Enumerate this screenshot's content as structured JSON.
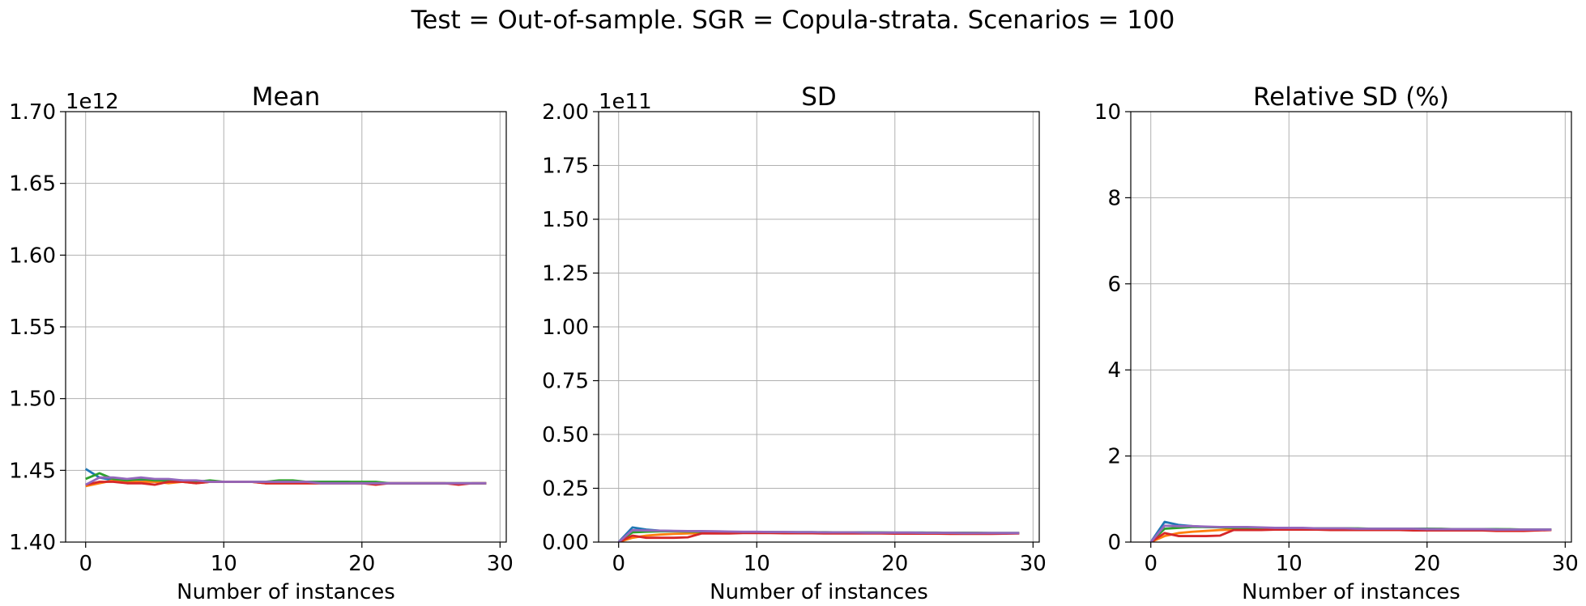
{
  "suptitle": "Test = Out-of-sample. SGR = Copula-strata. Scenarios = 100",
  "colors": [
    "#1f77b4",
    "#ff7f0e",
    "#2ca02c",
    "#d62728",
    "#9467bd"
  ],
  "chart_data": [
    {
      "type": "line",
      "title": "Mean",
      "xlabel": "Number of instances",
      "ylabel": "",
      "offset_text": "1e12",
      "xlim": [
        -1.45,
        30.45
      ],
      "ylim": [
        1.4,
        1.7
      ],
      "xticks": [
        0,
        10,
        20,
        30
      ],
      "xtick_labels": [
        "0",
        "10",
        "20",
        "30"
      ],
      "yticks": [
        1.4,
        1.45,
        1.5,
        1.55,
        1.6,
        1.65,
        1.7
      ],
      "ytick_labels": [
        "1.40",
        "1.45",
        "1.50",
        "1.55",
        "1.60",
        "1.65",
        "1.70"
      ],
      "grid": true,
      "x": [
        0,
        1,
        2,
        3,
        4,
        5,
        6,
        7,
        8,
        9,
        10,
        11,
        12,
        13,
        14,
        15,
        16,
        17,
        18,
        19,
        20,
        21,
        22,
        23,
        24,
        25,
        26,
        27,
        28,
        29
      ],
      "series": [
        {
          "values": [
            1.451,
            1.445,
            1.443,
            1.442,
            1.443,
            1.443,
            1.442,
            1.442,
            1.442,
            1.442,
            1.442,
            1.442,
            1.442,
            1.442,
            1.442,
            1.442,
            1.442,
            1.442,
            1.442,
            1.442,
            1.441,
            1.441,
            1.441,
            1.441,
            1.441,
            1.441,
            1.441,
            1.441,
            1.441,
            1.441
          ]
        },
        {
          "values": [
            1.439,
            1.441,
            1.443,
            1.442,
            1.442,
            1.442,
            1.441,
            1.442,
            1.441,
            1.442,
            1.442,
            1.442,
            1.442,
            1.441,
            1.441,
            1.441,
            1.441,
            1.441,
            1.441,
            1.441,
            1.441,
            1.441,
            1.441,
            1.441,
            1.441,
            1.441,
            1.441,
            1.441,
            1.441,
            1.441
          ]
        },
        {
          "values": [
            1.444,
            1.448,
            1.444,
            1.443,
            1.444,
            1.443,
            1.443,
            1.443,
            1.442,
            1.443,
            1.442,
            1.442,
            1.442,
            1.442,
            1.443,
            1.443,
            1.442,
            1.442,
            1.442,
            1.442,
            1.442,
            1.442,
            1.441,
            1.441,
            1.441,
            1.441,
            1.441,
            1.441,
            1.441,
            1.441
          ]
        },
        {
          "values": [
            1.44,
            1.442,
            1.442,
            1.441,
            1.441,
            1.44,
            1.442,
            1.442,
            1.441,
            1.442,
            1.442,
            1.442,
            1.442,
            1.441,
            1.441,
            1.441,
            1.441,
            1.441,
            1.441,
            1.441,
            1.441,
            1.44,
            1.441,
            1.441,
            1.441,
            1.441,
            1.441,
            1.44,
            1.441,
            1.441
          ]
        },
        {
          "values": [
            1.44,
            1.445,
            1.445,
            1.444,
            1.445,
            1.444,
            1.444,
            1.443,
            1.443,
            1.442,
            1.442,
            1.442,
            1.442,
            1.442,
            1.442,
            1.442,
            1.442,
            1.441,
            1.441,
            1.441,
            1.441,
            1.441,
            1.441,
            1.441,
            1.441,
            1.441,
            1.441,
            1.441,
            1.441,
            1.441
          ]
        }
      ]
    },
    {
      "type": "line",
      "title": "SD",
      "xlabel": "Number of instances",
      "ylabel": "",
      "offset_text": "1e11",
      "xlim": [
        -1.45,
        30.45
      ],
      "ylim": [
        0,
        2.0
      ],
      "xticks": [
        0,
        10,
        20,
        30
      ],
      "xtick_labels": [
        "0",
        "10",
        "20",
        "30"
      ],
      "yticks": [
        0,
        0.25,
        0.5,
        0.75,
        1.0,
        1.25,
        1.5,
        1.75,
        2.0
      ],
      "ytick_labels": [
        "0.00",
        "0.25",
        "0.50",
        "0.75",
        "1.00",
        "1.25",
        "1.50",
        "1.75",
        "2.00"
      ],
      "grid": true,
      "x": [
        0,
        1,
        2,
        3,
        4,
        5,
        6,
        7,
        8,
        9,
        10,
        11,
        12,
        13,
        14,
        15,
        16,
        17,
        18,
        19,
        20,
        21,
        22,
        23,
        24,
        25,
        26,
        27,
        28,
        29
      ],
      "series": [
        {
          "values": [
            0,
            0.068,
            0.058,
            0.053,
            0.051,
            0.05,
            0.049,
            0.048,
            0.047,
            0.047,
            0.047,
            0.046,
            0.046,
            0.046,
            0.046,
            0.045,
            0.045,
            0.045,
            0.045,
            0.044,
            0.044,
            0.044,
            0.044,
            0.043,
            0.043,
            0.043,
            0.042,
            0.042,
            0.042,
            0.042
          ]
        },
        {
          "values": [
            0,
            0.02,
            0.03,
            0.035,
            0.038,
            0.04,
            0.042,
            0.043,
            0.044,
            0.045,
            0.045,
            0.045,
            0.045,
            0.045,
            0.044,
            0.044,
            0.044,
            0.044,
            0.043,
            0.043,
            0.043,
            0.043,
            0.042,
            0.042,
            0.042,
            0.042,
            0.042,
            0.041,
            0.041,
            0.041
          ]
        },
        {
          "values": [
            0,
            0.045,
            0.048,
            0.05,
            0.05,
            0.049,
            0.048,
            0.048,
            0.047,
            0.047,
            0.047,
            0.047,
            0.046,
            0.046,
            0.046,
            0.046,
            0.045,
            0.045,
            0.045,
            0.045,
            0.044,
            0.044,
            0.044,
            0.044,
            0.043,
            0.043,
            0.043,
            0.042,
            0.042,
            0.042
          ]
        },
        {
          "values": [
            0,
            0.03,
            0.02,
            0.02,
            0.02,
            0.022,
            0.04,
            0.04,
            0.04,
            0.042,
            0.042,
            0.042,
            0.041,
            0.041,
            0.041,
            0.04,
            0.04,
            0.04,
            0.04,
            0.04,
            0.039,
            0.039,
            0.039,
            0.039,
            0.038,
            0.038,
            0.038,
            0.038,
            0.039,
            0.04
          ]
        },
        {
          "values": [
            0,
            0.055,
            0.054,
            0.053,
            0.052,
            0.051,
            0.051,
            0.05,
            0.049,
            0.048,
            0.048,
            0.047,
            0.047,
            0.046,
            0.046,
            0.045,
            0.045,
            0.045,
            0.044,
            0.044,
            0.044,
            0.044,
            0.043,
            0.043,
            0.043,
            0.042,
            0.042,
            0.042,
            0.042,
            0.042
          ]
        }
      ]
    },
    {
      "type": "line",
      "title": "Relative SD (%)",
      "xlabel": "Number of instances",
      "ylabel": "",
      "offset_text": "",
      "xlim": [
        -1.45,
        30.45
      ],
      "ylim": [
        0,
        10
      ],
      "xticks": [
        0,
        10,
        20,
        30
      ],
      "xtick_labels": [
        "0",
        "10",
        "20",
        "30"
      ],
      "yticks": [
        0,
        2,
        4,
        6,
        8,
        10
      ],
      "ytick_labels": [
        "0",
        "2",
        "4",
        "6",
        "8",
        "10"
      ],
      "grid": true,
      "x": [
        0,
        1,
        2,
        3,
        4,
        5,
        6,
        7,
        8,
        9,
        10,
        11,
        12,
        13,
        14,
        15,
        16,
        17,
        18,
        19,
        20,
        21,
        22,
        23,
        24,
        25,
        26,
        27,
        28,
        29
      ],
      "series": [
        {
          "values": [
            0,
            0.47,
            0.4,
            0.37,
            0.35,
            0.35,
            0.34,
            0.33,
            0.33,
            0.33,
            0.33,
            0.32,
            0.32,
            0.32,
            0.32,
            0.31,
            0.31,
            0.31,
            0.31,
            0.31,
            0.31,
            0.3,
            0.3,
            0.3,
            0.3,
            0.3,
            0.29,
            0.29,
            0.29,
            0.29
          ]
        },
        {
          "values": [
            0,
            0.14,
            0.21,
            0.24,
            0.26,
            0.28,
            0.29,
            0.3,
            0.31,
            0.31,
            0.31,
            0.31,
            0.31,
            0.31,
            0.31,
            0.31,
            0.3,
            0.3,
            0.3,
            0.3,
            0.3,
            0.3,
            0.29,
            0.29,
            0.29,
            0.29,
            0.29,
            0.29,
            0.28,
            0.28
          ]
        },
        {
          "values": [
            0,
            0.31,
            0.33,
            0.35,
            0.35,
            0.34,
            0.33,
            0.33,
            0.33,
            0.33,
            0.33,
            0.32,
            0.32,
            0.32,
            0.32,
            0.32,
            0.31,
            0.31,
            0.31,
            0.31,
            0.31,
            0.31,
            0.3,
            0.3,
            0.3,
            0.3,
            0.3,
            0.29,
            0.29,
            0.29
          ]
        },
        {
          "values": [
            0,
            0.21,
            0.14,
            0.14,
            0.14,
            0.15,
            0.28,
            0.28,
            0.28,
            0.29,
            0.29,
            0.29,
            0.29,
            0.28,
            0.28,
            0.28,
            0.28,
            0.28,
            0.28,
            0.27,
            0.27,
            0.27,
            0.27,
            0.27,
            0.27,
            0.26,
            0.26,
            0.26,
            0.27,
            0.28
          ]
        },
        {
          "values": [
            0,
            0.38,
            0.37,
            0.37,
            0.36,
            0.35,
            0.35,
            0.35,
            0.34,
            0.33,
            0.33,
            0.33,
            0.32,
            0.32,
            0.32,
            0.31,
            0.31,
            0.31,
            0.31,
            0.31,
            0.3,
            0.3,
            0.3,
            0.3,
            0.3,
            0.29,
            0.29,
            0.29,
            0.29,
            0.29
          ]
        }
      ]
    }
  ]
}
